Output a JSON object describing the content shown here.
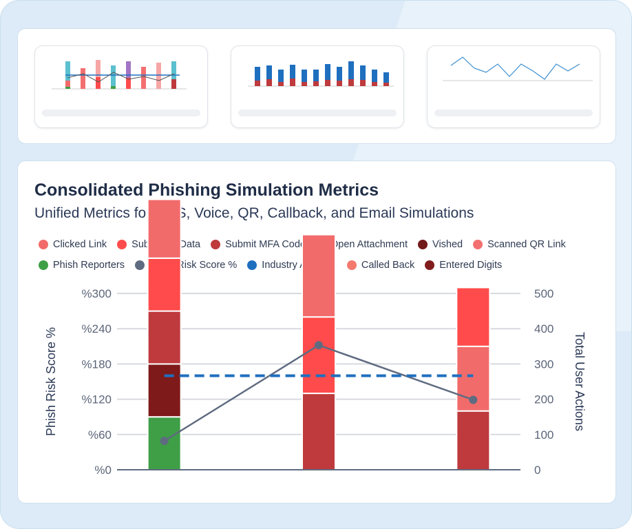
{
  "colors": {
    "clicked_link": "#f26b6b",
    "submitted_data": "#ff4b4b",
    "submit_mfa": "#be3a3d",
    "open_attachment": "#7f1a1a",
    "vished": "#721a1a",
    "scanned_qr": "#f37070",
    "phish_reporters": "#3f9f46",
    "risk_score": "#5f6b80",
    "industry_avg": "#1f6fbf",
    "called_back": "#f47a70",
    "entered_digits": "#821c1c"
  },
  "main": {
    "title": "Consolidated Phishing Simulation Metrics",
    "subtitle": "Unified Metrics for SMS, Voice, QR, Callback, and Email Simulations"
  },
  "legend_rows": [
    [
      {
        "label": "Clicked Link",
        "color": "#f26b6b"
      },
      {
        "label": "Submitted Data",
        "color": "#ff4b4b"
      },
      {
        "label": "Submit MFA Code",
        "color": "#be3a3d"
      },
      {
        "label": "Open Attachment",
        "color": "#7f1a1a"
      },
      {
        "label": "Vished",
        "color": "#721a1a"
      },
      {
        "label": "Scanned QR Link",
        "color": "#f37070"
      }
    ],
    [
      {
        "label": "Phish Reporters",
        "color": "#3f9f46"
      },
      {
        "label": "Phish Risk Score %",
        "color": "#5f6b80"
      },
      {
        "label": "Industry Average",
        "color": "#1f6fbf"
      },
      {
        "label": "Called Back",
        "color": "#f47a70"
      },
      {
        "label": "Entered Digits",
        "color": "#821c1c"
      }
    ]
  ],
  "chart_data": {
    "type": "bar",
    "title": "Consolidated Phishing Simulation Metrics",
    "subtitle": "Unified Metrics for SMS, Voice, QR, Callback, and Email Simulations",
    "ylabel": "Phish Risk Score %",
    "y2label": "Total User Actions",
    "ylim": [
      0,
      300
    ],
    "y2lim": [
      0,
      500
    ],
    "yticks": [
      "%0",
      "%60",
      "%120",
      "%180",
      "%240",
      "%300"
    ],
    "y2ticks": [
      "0",
      "100",
      "200",
      "300",
      "400",
      "500"
    ],
    "grid": true,
    "categories": [
      "",
      "",
      ""
    ],
    "stacks": [
      [
        {
          "series": "Phish Reporters",
          "value": 90,
          "color": "#3f9f46"
        },
        {
          "series": "Open Attachment",
          "value": 90,
          "color": "#7f1a1a"
        },
        {
          "series": "Submit MFA Code",
          "value": 90,
          "color": "#be3a3d"
        },
        {
          "series": "Submitted Data",
          "value": 90,
          "color": "#ff4b4b"
        },
        {
          "series": "Clicked Link",
          "value": 100,
          "color": "#f26b6b"
        }
      ],
      [
        {
          "series": "Submit MFA Code",
          "value": 130,
          "color": "#be3a3d"
        },
        {
          "series": "Submitted Data",
          "value": 130,
          "color": "#ff4b4b"
        },
        {
          "series": "Clicked Link",
          "value": 140,
          "color": "#f26b6b"
        }
      ],
      [
        {
          "series": "Submit MFA Code",
          "value": 100,
          "color": "#be3a3d"
        },
        {
          "series": "Clicked Link",
          "value": 110,
          "color": "#f26b6b"
        },
        {
          "series": "Submitted Data",
          "value": 100,
          "color": "#ff4b4b"
        }
      ]
    ],
    "lines": [
      {
        "name": "Phish Risk Score %",
        "axis": "left",
        "values": [
          49,
          212,
          119
        ],
        "color": "#5f6b80",
        "style": "solid",
        "markers": true
      },
      {
        "name": "Industry Average",
        "axis": "left",
        "values": [
          160,
          160,
          160
        ],
        "color": "#1f6fbf",
        "style": "dashed",
        "markers": false
      }
    ]
  }
}
